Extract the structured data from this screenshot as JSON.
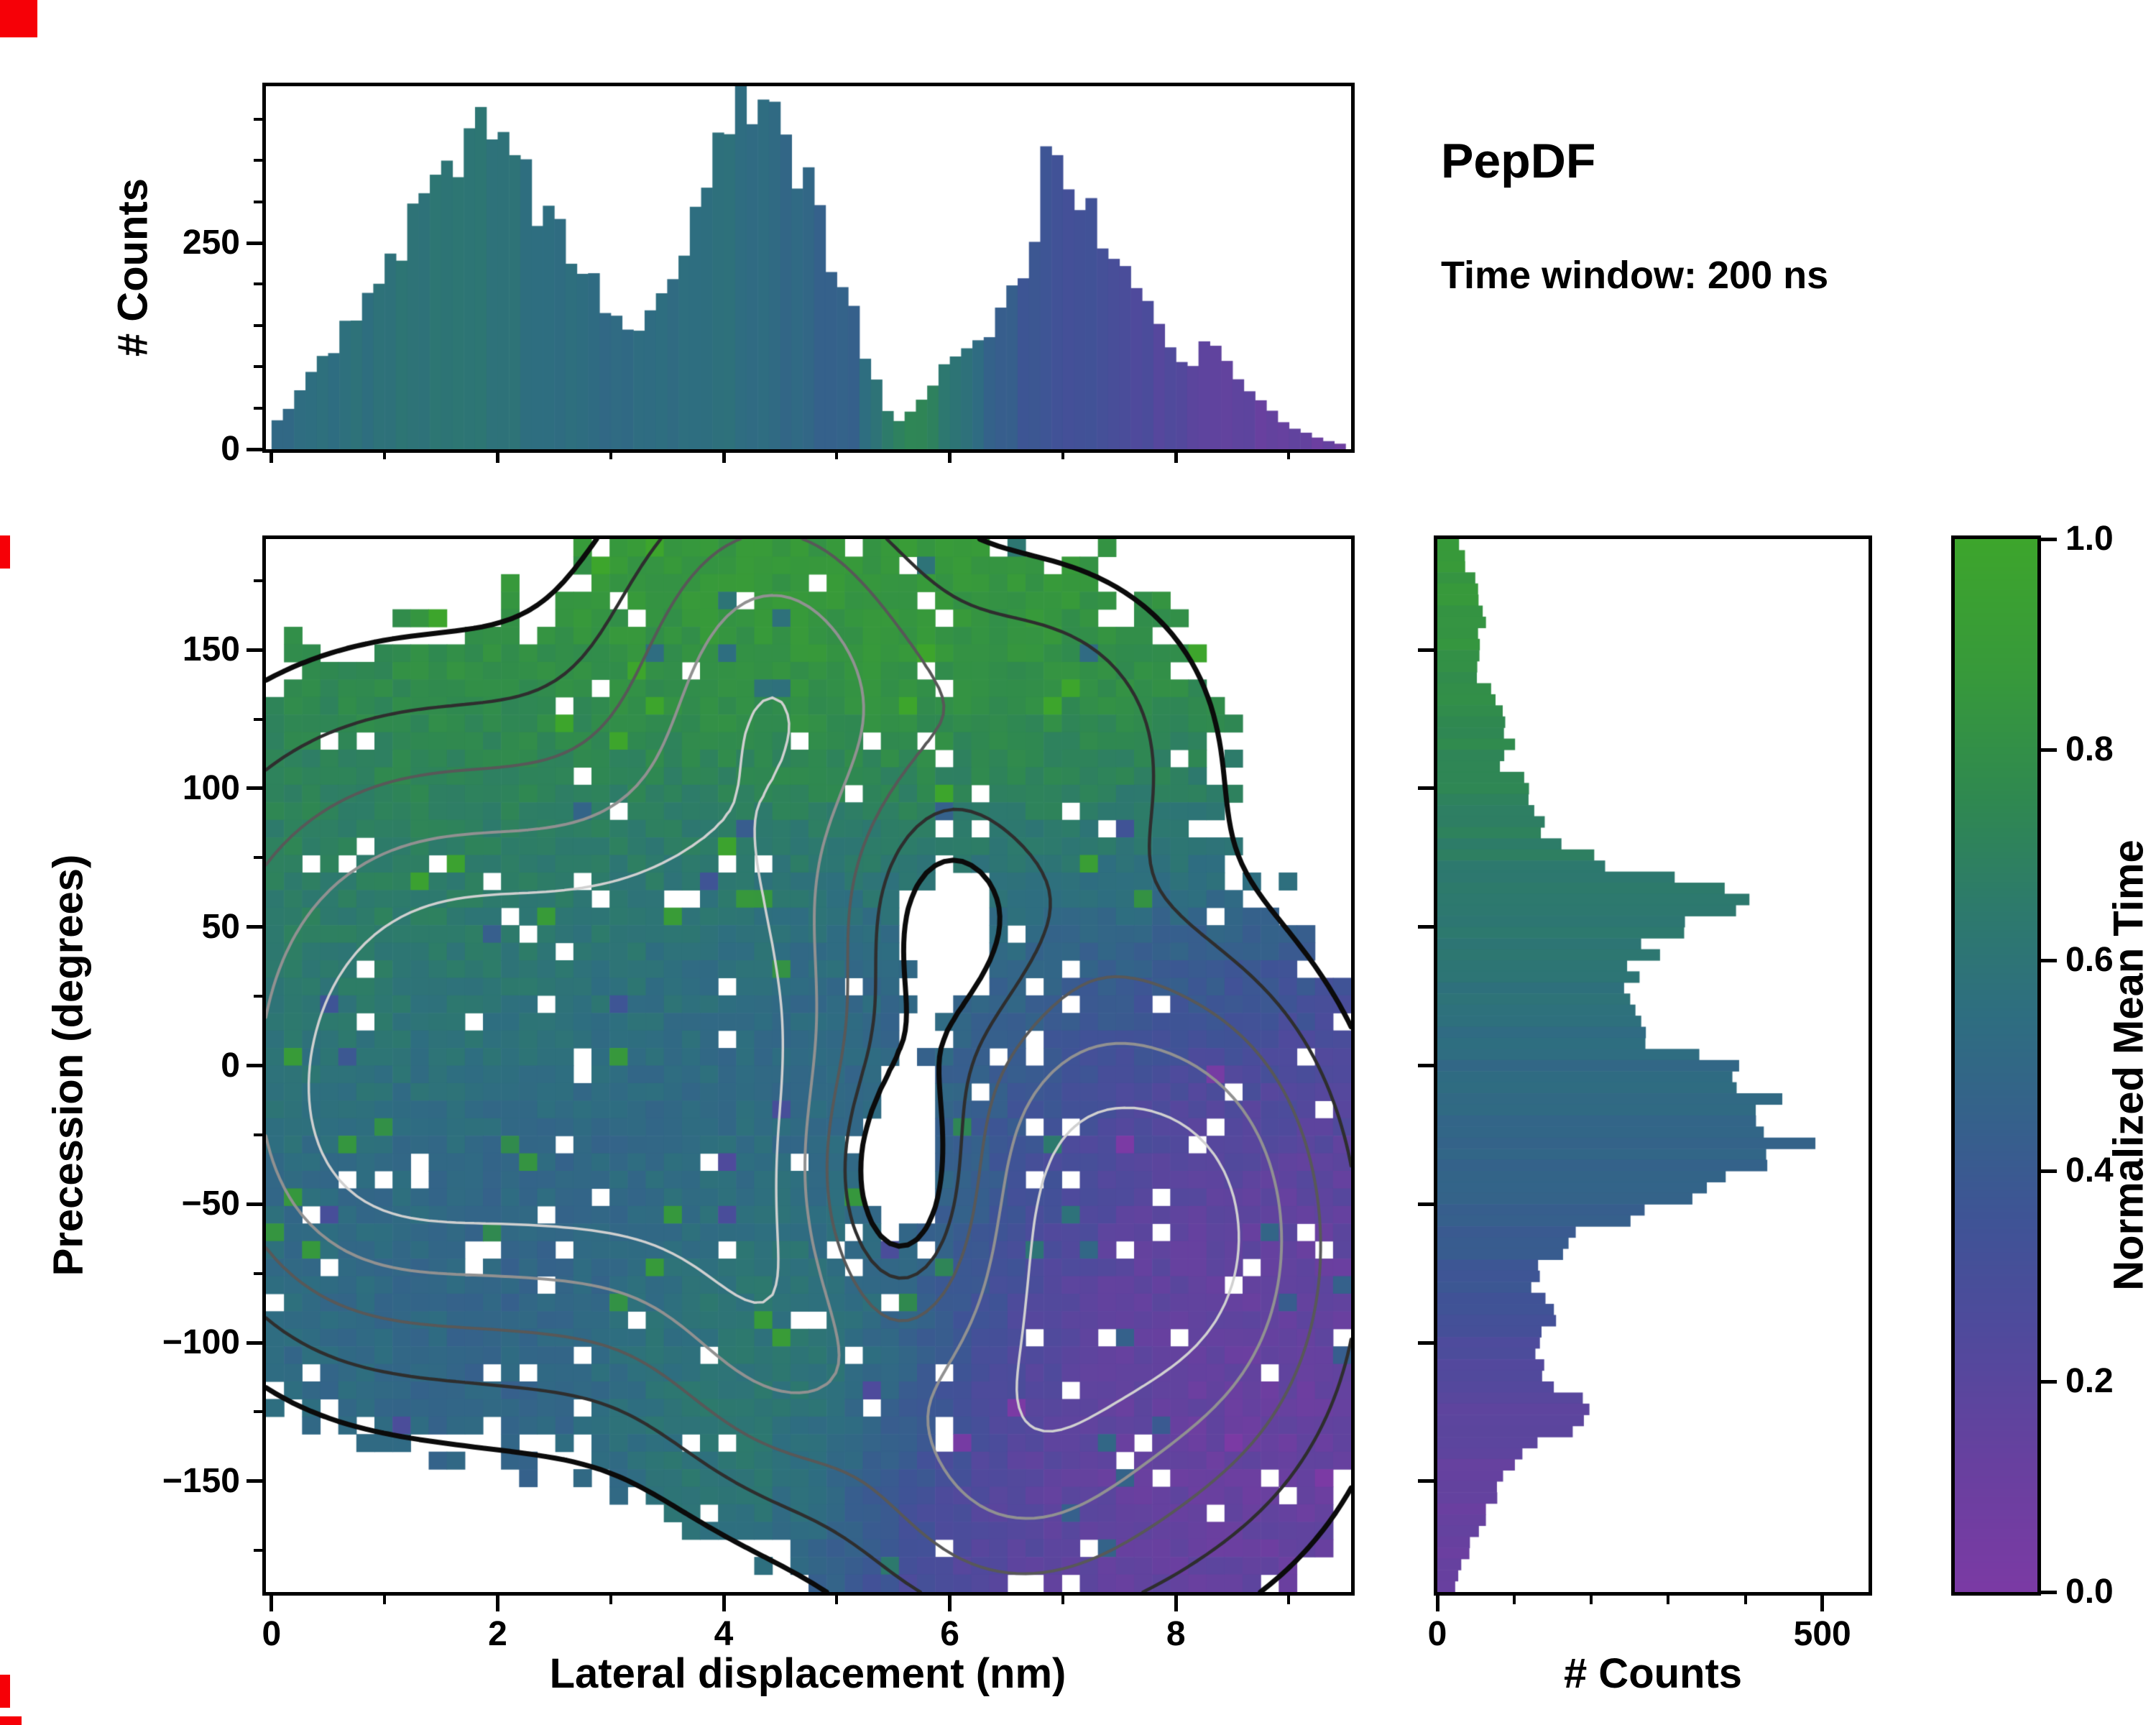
{
  "title": "PepDF",
  "subtitle": "Time window: 200 ns",
  "axes": {
    "top": {
      "ylabel": "# Counts",
      "yticks": [
        "0",
        "250"
      ],
      "ytick_values": [
        0,
        250
      ],
      "ytick_minor": [
        50,
        100,
        150,
        200,
        300,
        350,
        400
      ],
      "ylim": [
        0,
        440
      ]
    },
    "main": {
      "xlabel": "Lateral displacement (nm)",
      "ylabel": "Precession (degrees)",
      "xticks": [
        "0",
        "2",
        "4",
        "6",
        "8"
      ],
      "xtick_values": [
        0,
        2,
        4,
        6,
        8
      ],
      "xtick_minor": [
        1,
        3,
        5,
        7,
        9
      ],
      "yticks": [
        "−150",
        "−100",
        "−50",
        "0",
        "50",
        "100",
        "150"
      ],
      "ytick_values": [
        -150,
        -100,
        -50,
        0,
        50,
        100,
        150
      ],
      "ytick_minor": [
        -175,
        -125,
        -75,
        -25,
        25,
        75,
        125,
        175
      ],
      "xlim": [
        -0.05,
        9.55
      ],
      "ylim": [
        -190,
        190
      ]
    },
    "right": {
      "xlabel": "# Counts",
      "xticks": [
        "0",
        "500"
      ],
      "xtick_values": [
        0,
        500
      ],
      "xtick_minor": [
        100,
        200,
        300,
        400
      ],
      "xlim": [
        0,
        560
      ]
    },
    "colorbar": {
      "label": "Normalized Mean Time",
      "ticks": [
        "0.0",
        "0.2",
        "0.4",
        "0.6",
        "0.8",
        "1.0"
      ],
      "tick_values": [
        0,
        0.2,
        0.4,
        0.6,
        0.8,
        1.0
      ],
      "lim": [
        0,
        1
      ]
    }
  },
  "chart_data": [
    {
      "type": "bar",
      "name": "lateral-displacement-marginal-histogram",
      "orientation": "vertical",
      "x_range": [
        0,
        9.5
      ],
      "bins": 95,
      "ylim": [
        0,
        440
      ],
      "counts_envelope": [
        [
          0,
          30
        ],
        [
          0.2,
          60
        ],
        [
          0.5,
          120
        ],
        [
          0.8,
          185
        ],
        [
          1.0,
          215
        ],
        [
          1.2,
          260
        ],
        [
          1.5,
          320
        ],
        [
          1.7,
          355
        ],
        [
          1.85,
          385
        ],
        [
          2.0,
          360
        ],
        [
          2.2,
          330
        ],
        [
          2.4,
          290
        ],
        [
          2.6,
          250
        ],
        [
          2.8,
          205
        ],
        [
          3.0,
          165
        ],
        [
          3.15,
          135
        ],
        [
          3.3,
          150
        ],
        [
          3.5,
          195
        ],
        [
          3.7,
          260
        ],
        [
          3.9,
          330
        ],
        [
          4.1,
          400
        ],
        [
          4.25,
          420
        ],
        [
          4.4,
          395
        ],
        [
          4.6,
          360
        ],
        [
          4.8,
          300
        ],
        [
          5.0,
          220
        ],
        [
          5.2,
          140
        ],
        [
          5.35,
          80
        ],
        [
          5.5,
          35
        ],
        [
          5.65,
          45
        ],
        [
          5.8,
          70
        ],
        [
          6.0,
          110
        ],
        [
          6.2,
          140
        ],
        [
          6.4,
          155
        ],
        [
          6.6,
          210
        ],
        [
          6.75,
          260
        ],
        [
          6.85,
          375
        ],
        [
          6.95,
          330
        ],
        [
          7.1,
          300
        ],
        [
          7.3,
          270
        ],
        [
          7.5,
          235
        ],
        [
          7.7,
          185
        ],
        [
          7.9,
          135
        ],
        [
          8.1,
          105
        ],
        [
          8.3,
          125
        ],
        [
          8.45,
          110
        ],
        [
          8.6,
          85
        ],
        [
          8.8,
          55
        ],
        [
          9.0,
          30
        ],
        [
          9.2,
          15
        ],
        [
          9.5,
          5
        ]
      ],
      "colorvalue_envelope": [
        [
          0,
          0.52
        ],
        [
          0.5,
          0.55
        ],
        [
          1.0,
          0.58
        ],
        [
          1.5,
          0.6
        ],
        [
          2.0,
          0.58
        ],
        [
          2.5,
          0.55
        ],
        [
          3.0,
          0.52
        ],
        [
          3.5,
          0.55
        ],
        [
          4.0,
          0.56
        ],
        [
          4.5,
          0.52
        ],
        [
          4.8,
          0.48
        ],
        [
          5.1,
          0.45
        ],
        [
          5.4,
          0.6
        ],
        [
          5.6,
          0.72
        ],
        [
          5.9,
          0.68
        ],
        [
          6.1,
          0.6
        ],
        [
          6.3,
          0.5
        ],
        [
          6.5,
          0.42
        ],
        [
          6.7,
          0.38
        ],
        [
          7.0,
          0.33
        ],
        [
          7.3,
          0.3
        ],
        [
          7.6,
          0.28
        ],
        [
          8.0,
          0.22
        ],
        [
          8.4,
          0.18
        ],
        [
          8.8,
          0.14
        ],
        [
          9.2,
          0.12
        ],
        [
          9.5,
          0.1
        ]
      ]
    },
    {
      "type": "heatmap",
      "name": "precession-vs-lateral-displacement",
      "xlim": [
        -0.05,
        9.55
      ],
      "ylim": [
        -190,
        190
      ],
      "nx": 60,
      "ny": 60,
      "fill_threshold": 0.17,
      "colormap": [
        [
          0,
          "#7b3aa4"
        ],
        [
          0.12,
          "#68409f"
        ],
        [
          0.25,
          "#4f4a9c"
        ],
        [
          0.35,
          "#3f5396"
        ],
        [
          0.45,
          "#35618b"
        ],
        [
          0.55,
          "#2e6e80"
        ],
        [
          0.65,
          "#2d7a6c"
        ],
        [
          0.75,
          "#2f8851"
        ],
        [
          0.87,
          "#37993b"
        ],
        [
          1,
          "#3da52c"
        ]
      ],
      "density_clusters": [
        {
          "x": 1.4,
          "y": 40,
          "sx": 1.6,
          "sy": 62,
          "w": 0.9
        },
        {
          "x": 2.6,
          "y": -30,
          "sx": 1.6,
          "sy": 58,
          "w": 0.85
        },
        {
          "x": 0.6,
          "y": -40,
          "sx": 0.9,
          "sy": 45,
          "w": 0.4
        },
        {
          "x": 4.2,
          "y": 30,
          "sx": 1.1,
          "sy": 75,
          "w": 0.75
        },
        {
          "x": 4.4,
          "y": 150,
          "sx": 0.85,
          "sy": 48,
          "w": 0.7
        },
        {
          "x": 6.4,
          "y": 115,
          "sx": 1.15,
          "sy": 42,
          "w": 0.68
        },
        {
          "x": 7.0,
          "y": -15,
          "sx": 1.05,
          "sy": 52,
          "w": 0.6
        },
        {
          "x": 7.4,
          "y": -90,
          "sx": 1.3,
          "sy": 62,
          "w": 0.9
        },
        {
          "x": 8.5,
          "y": -50,
          "sx": 0.75,
          "sy": 55,
          "w": 0.45
        },
        {
          "x": 4.6,
          "y": -95,
          "sx": 0.75,
          "sy": 42,
          "w": 0.6
        },
        {
          "x": 6.4,
          "y": -150,
          "sx": 0.9,
          "sy": 38,
          "w": 0.5
        },
        {
          "x": 5.9,
          "y": 55,
          "sx": 0.7,
          "sy": 55,
          "w": -0.6
        },
        {
          "x": 5.5,
          "y": -45,
          "sx": 0.55,
          "sy": 35,
          "w": -0.9
        }
      ],
      "value_clusters": [
        {
          "x": 5.0,
          "y": 150,
          "sx": 2.4,
          "sy": 55,
          "v": 0.92,
          "w": 2.5
        },
        {
          "x": 7.0,
          "y": 95,
          "sx": 1.3,
          "sy": 55,
          "v": 0.86,
          "w": 2.2
        },
        {
          "x": 4.7,
          "y": -100,
          "sx": 0.95,
          "sy": 55,
          "v": 0.9,
          "w": 2.6
        },
        {
          "x": 1.2,
          "y": 55,
          "sx": 1.7,
          "sy": 55,
          "v": 0.72,
          "w": 2.0
        },
        {
          "x": 3.2,
          "y": 60,
          "sx": 1.2,
          "sy": 45,
          "v": 0.62,
          "w": 1.4
        },
        {
          "x": 2.4,
          "y": -40,
          "sx": 1.9,
          "sy": 65,
          "v": 0.44,
          "w": 1.8
        },
        {
          "x": 4.4,
          "y": 0,
          "sx": 1.2,
          "sy": 85,
          "v": 0.5,
          "w": 1.5
        },
        {
          "x": 0.8,
          "y": -75,
          "sx": 1.1,
          "sy": 40,
          "v": 0.58,
          "w": 1.0
        },
        {
          "x": 6.0,
          "y": -25,
          "sx": 0.7,
          "sy": 55,
          "v": 0.78,
          "w": 1.4
        },
        {
          "x": 7.3,
          "y": -95,
          "sx": 1.9,
          "sy": 75,
          "v": 0.13,
          "w": 3.0
        },
        {
          "x": 7.1,
          "y": 30,
          "sx": 1.4,
          "sy": 60,
          "v": 0.27,
          "w": 2.4
        },
        {
          "x": 8.7,
          "y": -135,
          "sx": 1.1,
          "sy": 55,
          "v": 0.1,
          "w": 2.0
        },
        {
          "x": 6.3,
          "y": -160,
          "sx": 1.0,
          "sy": 45,
          "v": 0.18,
          "w": 1.8
        }
      ],
      "base_value": {
        "v": 0.5,
        "w": 0.15
      },
      "contours": {
        "levels": [
          0.17,
          0.35,
          0.58,
          0.85,
          1.12
        ],
        "colors": [
          "#0b0b0b",
          "#2e2e2e",
          "#585858",
          "#919191",
          "#d0d0d0"
        ],
        "widths": [
          7,
          4.5,
          4,
          4,
          3.5
        ]
      }
    },
    {
      "type": "bar",
      "name": "precession-marginal-histogram",
      "orientation": "horizontal",
      "y_range": [
        -190,
        190
      ],
      "bins": 95,
      "xlim": [
        0,
        560
      ],
      "counts_envelope": [
        [
          190,
          25
        ],
        [
          180,
          40
        ],
        [
          170,
          55
        ],
        [
          160,
          65
        ],
        [
          150,
          50
        ],
        [
          140,
          55
        ],
        [
          130,
          75
        ],
        [
          120,
          95
        ],
        [
          110,
          85
        ],
        [
          100,
          115
        ],
        [
          90,
          125
        ],
        [
          80,
          160
        ],
        [
          75,
          210
        ],
        [
          70,
          260
        ],
        [
          65,
          330
        ],
        [
          60,
          430
        ],
        [
          55,
          390
        ],
        [
          50,
          340
        ],
        [
          45,
          300
        ],
        [
          40,
          280
        ],
        [
          35,
          260
        ],
        [
          30,
          255
        ],
        [
          25,
          240
        ],
        [
          20,
          235
        ],
        [
          15,
          250
        ],
        [
          10,
          265
        ],
        [
          5,
          300
        ],
        [
          0,
          360
        ],
        [
          -5,
          385
        ],
        [
          -10,
          400
        ],
        [
          -15,
          420
        ],
        [
          -20,
          435
        ],
        [
          -25,
          465
        ],
        [
          -30,
          470
        ],
        [
          -35,
          440
        ],
        [
          -40,
          415
        ],
        [
          -45,
          380
        ],
        [
          -50,
          310
        ],
        [
          -55,
          250
        ],
        [
          -60,
          190
        ],
        [
          -65,
          160
        ],
        [
          -70,
          145
        ],
        [
          -75,
          130
        ],
        [
          -80,
          120
        ],
        [
          -85,
          135
        ],
        [
          -90,
          150
        ],
        [
          -95,
          140
        ],
        [
          -100,
          130
        ],
        [
          -105,
          135
        ],
        [
          -110,
          145
        ],
        [
          -115,
          160
        ],
        [
          -120,
          180
        ],
        [
          -125,
          195
        ],
        [
          -130,
          170
        ],
        [
          -135,
          150
        ],
        [
          -140,
          110
        ],
        [
          -145,
          95
        ],
        [
          -150,
          85
        ],
        [
          -155,
          75
        ],
        [
          -160,
          65
        ],
        [
          -165,
          55
        ],
        [
          -170,
          45
        ],
        [
          -175,
          40
        ],
        [
          -180,
          30
        ],
        [
          -190,
          20
        ]
      ],
      "colorvalue_envelope": [
        [
          190,
          0.88
        ],
        [
          160,
          0.84
        ],
        [
          130,
          0.78
        ],
        [
          100,
          0.72
        ],
        [
          80,
          0.68
        ],
        [
          60,
          0.64
        ],
        [
          40,
          0.6
        ],
        [
          20,
          0.56
        ],
        [
          0,
          0.52
        ],
        [
          -20,
          0.5
        ],
        [
          -40,
          0.46
        ],
        [
          -60,
          0.42
        ],
        [
          -80,
          0.36
        ],
        [
          -100,
          0.28
        ],
        [
          -115,
          0.22
        ],
        [
          -130,
          0.17
        ],
        [
          -145,
          0.15
        ],
        [
          -160,
          0.13
        ],
        [
          -190,
          0.1
        ]
      ]
    }
  ]
}
